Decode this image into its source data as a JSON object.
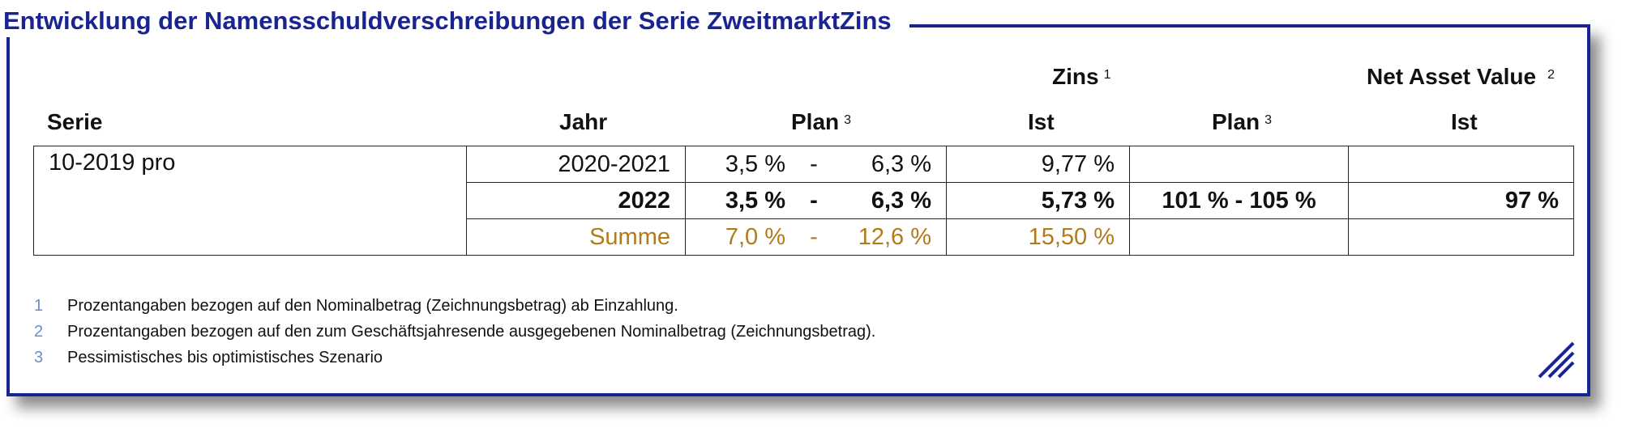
{
  "title": "Entwicklung der Namensschuldverschreibungen der Serie ZweitmarktZins",
  "colors": {
    "accent": "#1a2490",
    "sum": "#b37a18",
    "footnote_number": "#6a8cc8"
  },
  "header": {
    "zins": "Zins",
    "zins_sup": "1",
    "nav": "Net Asset Value",
    "nav_sup": "2",
    "serie": "Serie",
    "jahr": "Jahr",
    "plan": "Plan",
    "plan_sup": "3",
    "ist": "Ist",
    "plan2": "Plan",
    "plan2_sup": "3",
    "ist2": "Ist"
  },
  "table": {
    "serie": "10-2019 pro",
    "rows": [
      {
        "jahr": "2020-2021",
        "plan_lo": "3,5 %",
        "dash": "-",
        "plan_hi": "6,3 %",
        "ist": "9,77 %",
        "nav_plan": "",
        "nav_ist": ""
      },
      {
        "jahr": "2022",
        "plan_lo": "3,5 %",
        "dash": "-",
        "plan_hi": "6,3 %",
        "ist": "5,73 %",
        "nav_plan": "101 % - 105 %",
        "nav_ist": "97 %"
      },
      {
        "jahr": "Summe",
        "plan_lo": "7,0 %",
        "dash": "-",
        "plan_hi": "12,6 %",
        "ist": "15,50 %",
        "nav_plan": "",
        "nav_ist": ""
      }
    ]
  },
  "footnotes": [
    {
      "num": "1",
      "text": "Prozentangaben bezogen auf den Nominalbetrag (Zeichnungsbetrag) ab Einzahlung."
    },
    {
      "num": "2",
      "text": "Prozentangaben bezogen auf den zum Geschäftsjahresende ausgegebenen Nominalbetrag (Zeichnungsbetrag)."
    },
    {
      "num": "3",
      "text": "Pessimistisches bis optimistisches Szenario"
    }
  ],
  "corner_icon": "diagonal-stripes-icon"
}
